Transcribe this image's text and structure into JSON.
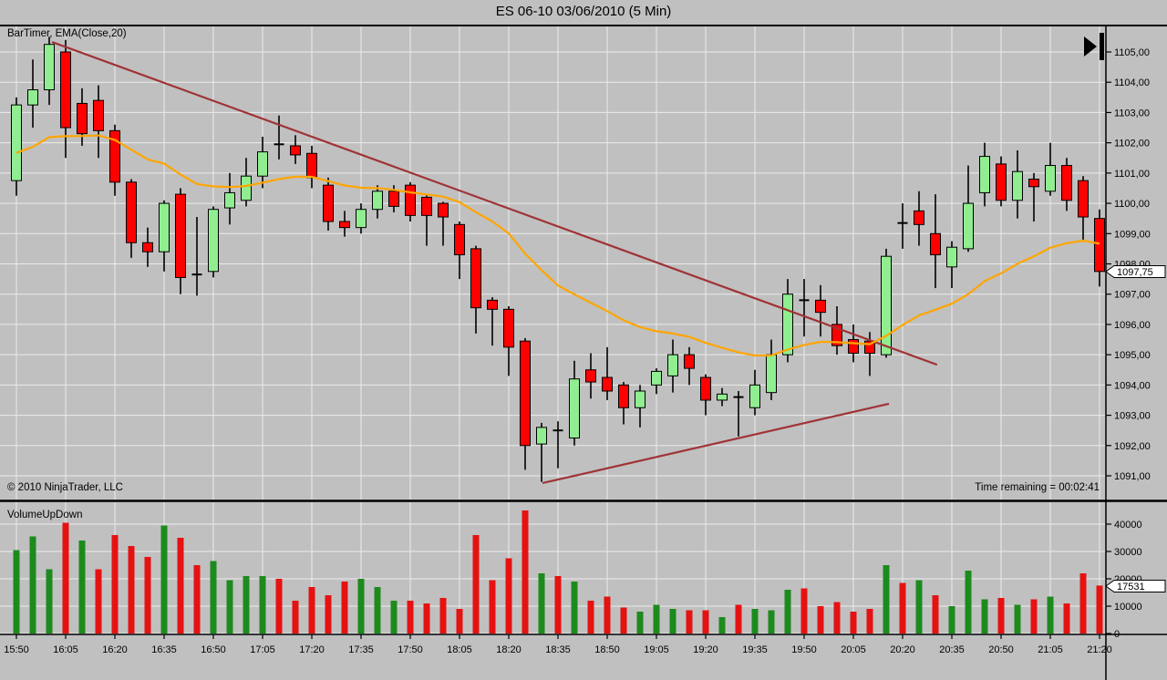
{
  "window": {
    "title": "ES 06-10  03/06/2010 (5 Min)"
  },
  "price_panel": {
    "indicator_label": "BarTimer, EMA(Close,20)",
    "copyright": "© 2010 NinjaTrader, LLC",
    "time_remaining": "Time remaining = 00:02:41",
    "price_badge": "1097,75"
  },
  "volume_panel": {
    "label": "VolumeUpDown",
    "volume_badge": "17531"
  },
  "colors": {
    "background": "#c0c0c0",
    "grid": "#ebebeb",
    "frame": "#000000",
    "candle_up": "#90ee90",
    "candle_down": "#ff0000",
    "candle_border": "#000000",
    "volume_up": "#1d8a1d",
    "volume_down": "#e51212",
    "ema": "#ffa500",
    "trendline": "#a03336",
    "badge_bg": "#ffffff",
    "text": "#000000"
  },
  "chart_data": {
    "type": "candlestick+volume",
    "title": "ES 06-10  03/06/2010 (5 Min)",
    "interval": "5 Min",
    "legend": [
      "BarTimer",
      "EMA(Close,20)",
      "VolumeUpDown"
    ],
    "price_axis_labels": [
      "1105,00",
      "1104,00",
      "1103,00",
      "1102,00",
      "1101,00",
      "1100,00",
      "1099,00",
      "1098,00",
      "1097,00",
      "1096,00",
      "1095,00",
      "1094,00",
      "1093,00",
      "1092,00",
      "1091,00"
    ],
    "price_axis_values": [
      1105,
      1104,
      1103,
      1102,
      1101,
      1100,
      1099,
      1098,
      1097,
      1096,
      1095,
      1094,
      1093,
      1092,
      1091
    ],
    "volume_axis_labels": [
      "40000",
      "30000",
      "20000",
      "10000",
      "0"
    ],
    "volume_axis_values": [
      40000,
      30000,
      20000,
      10000,
      0
    ],
    "price_axis_range": [
      1090.2,
      1105.9
    ],
    "volume_axis_range": [
      0,
      48000
    ],
    "x_labels": [
      "15:50",
      "16:05",
      "16:20",
      "16:35",
      "16:50",
      "17:05",
      "17:20",
      "17:35",
      "17:50",
      "18:05",
      "18:20",
      "18:35",
      "18:50",
      "19:05",
      "19:20",
      "19:35",
      "19:50",
      "20:05",
      "20:20",
      "20:35",
      "20:50",
      "21:05",
      "21:20"
    ],
    "last_price": 1097.75,
    "last_volume": 17531,
    "candles": [
      [
        "15:50",
        1100.75,
        1103.5,
        1100.25,
        1103.25
      ],
      [
        "15:55",
        1103.25,
        1104.75,
        1102.5,
        1103.75
      ],
      [
        "16:00",
        1103.75,
        1105.5,
        1103.25,
        1105.25
      ],
      [
        "16:05",
        1105.0,
        1105.4,
        1101.5,
        1102.5
      ],
      [
        "16:10",
        1103.3,
        1103.8,
        1101.9,
        1102.3
      ],
      [
        "16:15",
        1103.4,
        1103.9,
        1101.5,
        1102.4
      ],
      [
        "16:20",
        1102.4,
        1102.6,
        1100.25,
        1100.7
      ],
      [
        "16:25",
        1100.7,
        1100.8,
        1098.2,
        1098.7
      ],
      [
        "16:30",
        1098.7,
        1099.2,
        1097.9,
        1098.4
      ],
      [
        "16:35",
        1098.4,
        1100.1,
        1097.75,
        1100.0
      ],
      [
        "16:40",
        1100.3,
        1100.5,
        1097.0,
        1097.55
      ],
      [
        "16:45",
        1097.6,
        1099.55,
        1096.95,
        1097.65
      ],
      [
        "16:50",
        1097.75,
        1099.9,
        1097.55,
        1099.8
      ],
      [
        "16:55",
        1099.85,
        1101.0,
        1099.3,
        1100.35
      ],
      [
        "17:00",
        1100.1,
        1101.5,
        1099.9,
        1100.9
      ],
      [
        "17:05",
        1100.9,
        1102.2,
        1100.5,
        1101.7
      ],
      [
        "17:10",
        1101.9,
        1102.9,
        1101.45,
        1101.95
      ],
      [
        "17:15",
        1101.9,
        1102.25,
        1101.3,
        1101.6
      ],
      [
        "17:20",
        1101.65,
        1101.9,
        1100.5,
        1100.85
      ],
      [
        "17:25",
        1100.6,
        1100.85,
        1099.1,
        1099.4
      ],
      [
        "17:30",
        1099.4,
        1099.75,
        1098.9,
        1099.2
      ],
      [
        "17:35",
        1099.2,
        1100.0,
        1099.0,
        1099.8
      ],
      [
        "17:40",
        1099.8,
        1100.6,
        1099.5,
        1100.4
      ],
      [
        "17:45",
        1100.4,
        1100.6,
        1099.7,
        1099.9
      ],
      [
        "17:50",
        1100.6,
        1100.7,
        1099.4,
        1099.6
      ],
      [
        "17:55",
        1100.2,
        1100.3,
        1098.6,
        1099.6
      ],
      [
        "18:00",
        1100.0,
        1100.05,
        1098.6,
        1099.55
      ],
      [
        "18:05",
        1099.3,
        1099.4,
        1097.5,
        1098.3
      ],
      [
        "18:10",
        1098.5,
        1098.6,
        1095.7,
        1096.55
      ],
      [
        "18:15",
        1096.8,
        1096.9,
        1095.3,
        1096.5
      ],
      [
        "18:20",
        1096.5,
        1096.6,
        1094.3,
        1095.25
      ],
      [
        "18:25",
        1095.45,
        1095.55,
        1091.2,
        1092.0
      ],
      [
        "18:30",
        1092.05,
        1092.75,
        1090.8,
        1092.6
      ],
      [
        "18:35",
        1092.5,
        1092.8,
        1091.25,
        1092.5
      ],
      [
        "18:40",
        1092.25,
        1094.8,
        1092.0,
        1094.2
      ],
      [
        "18:45",
        1094.5,
        1095.05,
        1093.55,
        1094.1
      ],
      [
        "18:50",
        1094.25,
        1095.25,
        1093.5,
        1093.8
      ],
      [
        "18:55",
        1094.0,
        1094.1,
        1092.7,
        1093.25
      ],
      [
        "19:00",
        1093.25,
        1094.0,
        1092.6,
        1093.8
      ],
      [
        "19:05",
        1094.0,
        1094.55,
        1093.7,
        1094.45
      ],
      [
        "19:10",
        1094.3,
        1095.5,
        1093.75,
        1095.0
      ],
      [
        "19:15",
        1095.0,
        1095.25,
        1094.0,
        1094.55
      ],
      [
        "19:20",
        1094.25,
        1094.35,
        1093.0,
        1093.5
      ],
      [
        "19:25",
        1093.5,
        1093.9,
        1093.3,
        1093.7
      ],
      [
        "19:30",
        1093.6,
        1093.8,
        1092.3,
        1093.6
      ],
      [
        "19:35",
        1093.25,
        1094.5,
        1093.0,
        1094.0
      ],
      [
        "19:40",
        1093.75,
        1095.5,
        1093.5,
        1095.0
      ],
      [
        "19:45",
        1095.0,
        1097.5,
        1094.75,
        1097.0
      ],
      [
        "19:50",
        1096.75,
        1097.5,
        1095.6,
        1096.8
      ],
      [
        "19:55",
        1096.8,
        1097.3,
        1095.6,
        1096.4
      ],
      [
        "20:00",
        1096.0,
        1096.6,
        1095.0,
        1095.3
      ],
      [
        "20:05",
        1095.5,
        1096.0,
        1094.75,
        1095.05
      ],
      [
        "20:10",
        1095.45,
        1095.75,
        1094.3,
        1095.05
      ],
      [
        "20:15",
        1095.0,
        1098.5,
        1094.9,
        1098.25
      ],
      [
        "20:20",
        1099.3,
        1100.0,
        1098.5,
        1099.35
      ],
      [
        "20:25",
        1099.75,
        1100.4,
        1098.6,
        1099.3
      ],
      [
        "20:30",
        1099.0,
        1100.3,
        1097.2,
        1098.3
      ],
      [
        "20:35",
        1097.9,
        1098.75,
        1097.2,
        1098.55
      ],
      [
        "20:40",
        1098.5,
        1101.25,
        1098.4,
        1100.0
      ],
      [
        "20:45",
        1100.35,
        1102.0,
        1099.9,
        1101.55
      ],
      [
        "20:50",
        1101.3,
        1101.55,
        1099.9,
        1100.1
      ],
      [
        "20:55",
        1100.1,
        1101.75,
        1099.5,
        1101.05
      ],
      [
        "21:00",
        1100.8,
        1101.0,
        1099.4,
        1100.55
      ],
      [
        "21:05",
        1100.4,
        1102.0,
        1100.25,
        1101.25
      ],
      [
        "21:10",
        1101.25,
        1101.5,
        1099.75,
        1100.1
      ],
      [
        "21:15",
        1100.75,
        1100.9,
        1098.75,
        1099.55
      ],
      [
        "21:20",
        1099.5,
        1099.8,
        1097.25,
        1097.75
      ]
    ],
    "volumes": [
      [
        30500,
        1
      ],
      [
        35500,
        1
      ],
      [
        23500,
        1
      ],
      [
        40500,
        0
      ],
      [
        34000,
        1
      ],
      [
        23500,
        0
      ],
      [
        36000,
        0
      ],
      [
        32000,
        0
      ],
      [
        28000,
        0
      ],
      [
        39500,
        1
      ],
      [
        35000,
        0
      ],
      [
        25000,
        0
      ],
      [
        26500,
        1
      ],
      [
        19500,
        1
      ],
      [
        21000,
        1
      ],
      [
        21000,
        1
      ],
      [
        20000,
        0
      ],
      [
        12000,
        0
      ],
      [
        17000,
        0
      ],
      [
        14000,
        0
      ],
      [
        19000,
        0
      ],
      [
        20000,
        1
      ],
      [
        17000,
        1
      ],
      [
        12000,
        1
      ],
      [
        12000,
        0
      ],
      [
        11000,
        0
      ],
      [
        13000,
        0
      ],
      [
        9000,
        0
      ],
      [
        36000,
        0
      ],
      [
        19500,
        0
      ],
      [
        27500,
        0
      ],
      [
        45000,
        0
      ],
      [
        22000,
        1
      ],
      [
        21000,
        0
      ],
      [
        19000,
        1
      ],
      [
        12000,
        0
      ],
      [
        13500,
        0
      ],
      [
        9500,
        0
      ],
      [
        8000,
        1
      ],
      [
        10500,
        1
      ],
      [
        9000,
        1
      ],
      [
        8500,
        0
      ],
      [
        8500,
        0
      ],
      [
        6000,
        1
      ],
      [
        10500,
        0
      ],
      [
        9000,
        1
      ],
      [
        8500,
        1
      ],
      [
        16000,
        1
      ],
      [
        16500,
        0
      ],
      [
        10000,
        0
      ],
      [
        11500,
        0
      ],
      [
        8000,
        0
      ],
      [
        9000,
        0
      ],
      [
        25000,
        1
      ],
      [
        18500,
        0
      ],
      [
        19500,
        1
      ],
      [
        14000,
        0
      ],
      [
        10000,
        1
      ],
      [
        23000,
        1
      ],
      [
        12500,
        1
      ],
      [
        13000,
        0
      ],
      [
        10500,
        1
      ],
      [
        12500,
        0
      ],
      [
        13500,
        1
      ],
      [
        11000,
        0
      ],
      [
        22000,
        0
      ],
      [
        17531,
        0
      ]
    ],
    "ema": {
      "name": "EMA(Close,20)",
      "period": 20,
      "seed": 1101.5
    },
    "trendlines": [
      {
        "b1": 2.17,
        "p1": 1105.33,
        "b2": 56.1,
        "p2": 1094.67
      },
      {
        "b1": 32.06,
        "p1": 1090.76,
        "b2": 53.17,
        "p2": 1093.38
      }
    ],
    "legend_position": "top-left",
    "grid": true
  }
}
